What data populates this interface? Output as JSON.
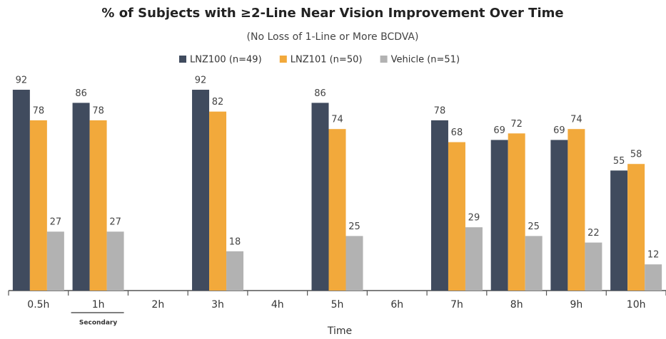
{
  "chart_data": {
    "type": "bar",
    "title": "% of Subjects with ≥2-Line Near Vision Improvement Over Time",
    "subtitle": "(No Loss of 1-Line or More BCDVA)",
    "x_label": "Time",
    "annotation": "Secondary",
    "categories": [
      "0.5h",
      "1h",
      "2h",
      "3h",
      "4h",
      "5h",
      "6h",
      "7h",
      "8h",
      "9h",
      "10h"
    ],
    "series": [
      {
        "name": "LNZ100 (n=49)",
        "color": "#404b5e",
        "values": [
          92,
          86,
          null,
          92,
          null,
          86,
          null,
          78,
          69,
          69,
          55
        ]
      },
      {
        "name": "LNZ101 (n=50)",
        "color": "#f2a93b",
        "values": [
          78,
          78,
          null,
          82,
          null,
          74,
          null,
          68,
          72,
          74,
          58
        ]
      },
      {
        "name": "Vehicle (n=51)",
        "color": "#b2b2b2",
        "values": [
          27,
          27,
          null,
          18,
          null,
          25,
          null,
          29,
          25,
          22,
          12
        ]
      }
    ],
    "ylim": [
      0,
      100
    ],
    "legend": "top"
  }
}
